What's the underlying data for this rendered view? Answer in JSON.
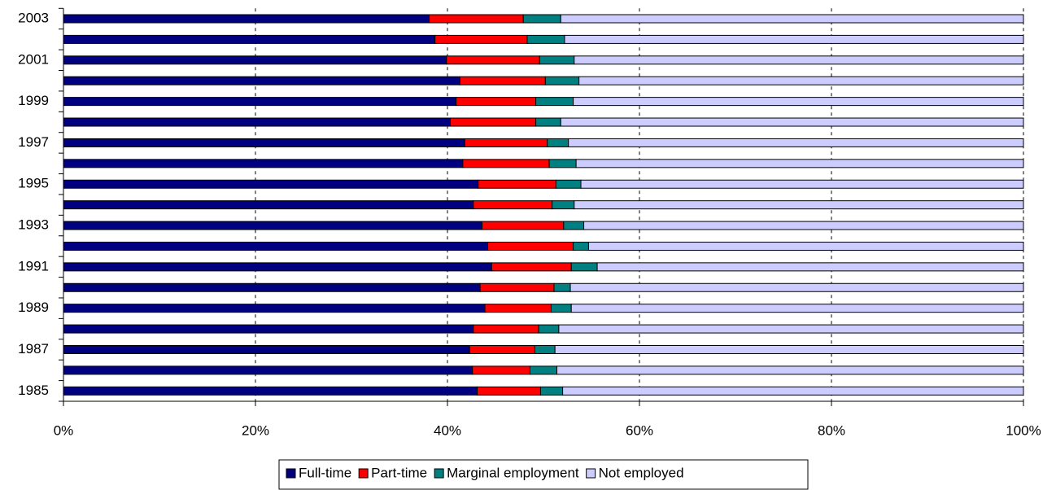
{
  "chart_data": {
    "type": "stacked_bar_horizontal",
    "categories": [
      "1985",
      null,
      "1987",
      null,
      "1989",
      null,
      "1991",
      null,
      "1993",
      null,
      "1995",
      null,
      "1997",
      null,
      "1999",
      null,
      "2001",
      null,
      "2003"
    ],
    "series": [
      {
        "name": "Full-time",
        "color": "#000080",
        "values": [
          43.1,
          42.6,
          42.3,
          42.7,
          43.9,
          43.4,
          44.6,
          44.2,
          43.6,
          42.7,
          43.2,
          41.6,
          41.8,
          40.3,
          40.9,
          41.3,
          39.9,
          38.7,
          38.1
        ]
      },
      {
        "name": "Part-time",
        "color": "#ff0000",
        "values": [
          6.6,
          6.0,
          6.8,
          6.8,
          6.9,
          7.7,
          8.3,
          8.9,
          8.5,
          8.2,
          8.1,
          9.0,
          8.6,
          8.9,
          8.3,
          8.9,
          9.7,
          9.6,
          9.8
        ]
      },
      {
        "name": "Marginal employment",
        "color": "#008080",
        "values": [
          2.3,
          2.8,
          2.1,
          2.1,
          2.1,
          1.7,
          2.7,
          1.6,
          2.1,
          2.3,
          2.6,
          2.8,
          2.2,
          2.6,
          3.9,
          3.5,
          3.6,
          3.9,
          3.9
        ]
      },
      {
        "name": "Not employed",
        "color": "#ccccff",
        "values": [
          48.0,
          48.6,
          48.8,
          48.4,
          47.1,
          47.2,
          44.4,
          45.3,
          45.8,
          46.8,
          46.1,
          46.6,
          47.4,
          48.2,
          46.9,
          46.3,
          46.8,
          47.8,
          48.2
        ]
      }
    ],
    "xlim": [
      0,
      100
    ],
    "xticks": [
      {
        "value": 0,
        "label": "0%"
      },
      {
        "value": 20,
        "label": "20%"
      },
      {
        "value": 40,
        "label": "40%"
      },
      {
        "value": 60,
        "label": "60%"
      },
      {
        "value": 80,
        "label": "80%"
      },
      {
        "value": 100,
        "label": "100%"
      }
    ],
    "grid": true,
    "legend": "bottom"
  }
}
